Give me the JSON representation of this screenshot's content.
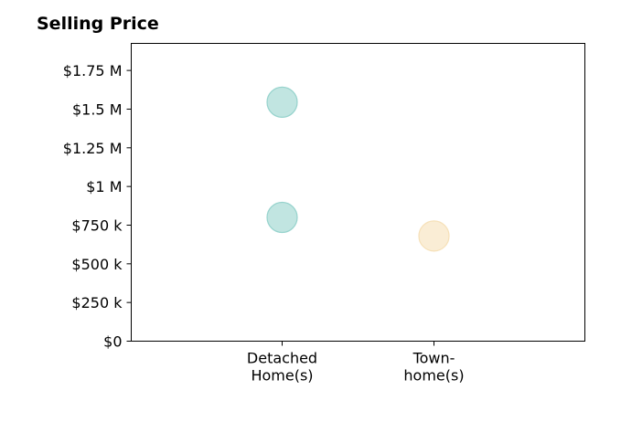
{
  "chart_data": {
    "type": "scatter",
    "title": "Selling Price",
    "xlabel": "",
    "ylabel": "",
    "categories": [
      [
        "Detached",
        "Home(s)"
      ],
      [
        "Town-",
        "home(s)"
      ]
    ],
    "y_ticks": [
      {
        "value": 0,
        "label": "$0"
      },
      {
        "value": 250000,
        "label": "$250 k"
      },
      {
        "value": 500000,
        "label": "$500 k"
      },
      {
        "value": 750000,
        "label": "$750 k"
      },
      {
        "value": 1000000,
        "label": "$1 M"
      },
      {
        "value": 1250000,
        "label": "$1.25 M"
      },
      {
        "value": 1500000,
        "label": "$1.5 M"
      },
      {
        "value": 1750000,
        "label": "$1.75 M"
      }
    ],
    "ylim": [
      0,
      1925000
    ],
    "grid": false,
    "points": [
      {
        "category": 0,
        "value": 1545000,
        "color": "#8ecfc9"
      },
      {
        "category": 0,
        "value": 800000,
        "color": "#8ecfc9"
      },
      {
        "category": 1,
        "value": 680000,
        "color": "#f5deb3"
      }
    ]
  }
}
